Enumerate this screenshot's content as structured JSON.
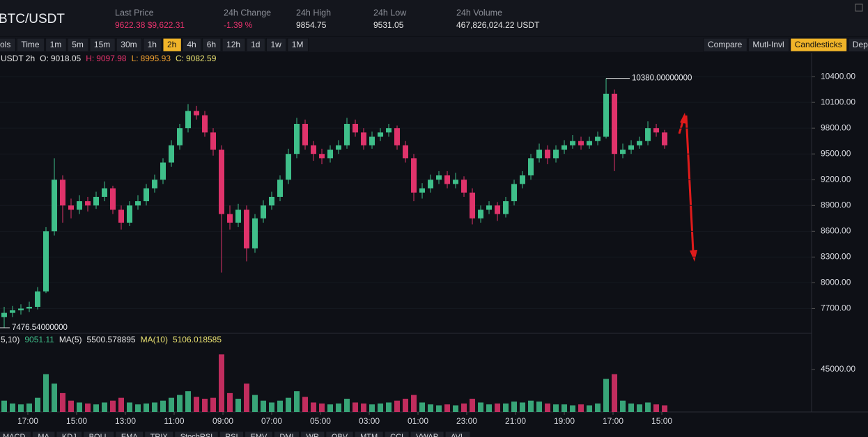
{
  "header": {
    "pair": "BTC/USDT",
    "stats": [
      {
        "label": "Last Price",
        "value": "9622.38 $9,622.31",
        "color": "#e8336d"
      },
      {
        "label": "24h Change",
        "value": "-1.39 %",
        "color": "#e8336d"
      },
      {
        "label": "24h High",
        "value": "9854.75",
        "color": "#e6e6e6"
      },
      {
        "label": "24h Low",
        "value": "9531.05",
        "color": "#e6e6e6"
      },
      {
        "label": "24h Volume",
        "value": "467,826,024.22 USDT",
        "color": "#e6e6e6"
      }
    ]
  },
  "toolbar": {
    "left": [
      {
        "label": "ols"
      },
      {
        "label": "Time"
      },
      {
        "label": "1m"
      },
      {
        "label": "5m"
      },
      {
        "label": "15m"
      },
      {
        "label": "30m"
      },
      {
        "label": "1h"
      },
      {
        "label": "2h",
        "active": true
      },
      {
        "label": "4h"
      },
      {
        "label": "6h"
      },
      {
        "label": "12h"
      },
      {
        "label": "1d"
      },
      {
        "label": "1w"
      },
      {
        "label": "1M"
      }
    ],
    "right": [
      {
        "label": "Compare"
      },
      {
        "label": "Mutl-Invl"
      },
      {
        "label": "Candlesticks",
        "active": true
      },
      {
        "label": "Dep"
      }
    ]
  },
  "ohlc_info": [
    {
      "text": "USDT 2h",
      "color": "#e6e6e6"
    },
    {
      "text": "O:",
      "color": "#e6e6e6"
    },
    {
      "text": "9018.05",
      "color": "#e6e6e6"
    },
    {
      "text": "H:",
      "color": "#e8336d"
    },
    {
      "text": "9097.98",
      "color": "#e8336d"
    },
    {
      "text": "L:",
      "color": "#f0a030"
    },
    {
      "text": "8995.93",
      "color": "#f0a030"
    },
    {
      "text": "C:",
      "color": "#e8e070"
    },
    {
      "text": "9082.59",
      "color": "#e8e070"
    }
  ],
  "volume_info": [
    {
      "text": "5,10)",
      "color": "#e6e6e6"
    },
    {
      "text": "9051.11",
      "color": "#3fbf8a"
    },
    {
      "text": "MA(5)",
      "color": "#e6e6e6"
    },
    {
      "text": "5500.578895",
      "color": "#e6e6e6"
    },
    {
      "text": "MA(10)",
      "color": "#e8e070"
    },
    {
      "text": "5106.018585",
      "color": "#e8e070"
    }
  ],
  "chart_data": {
    "type": "candlestick",
    "up_color": "#3fbf8a",
    "down_color": "#e0336b",
    "candles": [
      [
        7600,
        7720,
        7476.54,
        7650
      ],
      [
        7650,
        7730,
        7600,
        7680
      ],
      [
        7680,
        7750,
        7630,
        7700
      ],
      [
        7700,
        7780,
        7660,
        7720
      ],
      [
        7720,
        7950,
        7690,
        7900
      ],
      [
        7900,
        8650,
        7880,
        8600
      ],
      [
        8600,
        9450,
        8550,
        9200
      ],
      [
        9200,
        9250,
        8700,
        8900
      ],
      [
        8900,
        8980,
        8750,
        8850
      ],
      [
        8850,
        9020,
        8800,
        8950
      ],
      [
        8950,
        9000,
        8830,
        8900
      ],
      [
        8900,
        9060,
        8860,
        9000
      ],
      [
        9000,
        9180,
        8950,
        9100
      ],
      [
        9100,
        9130,
        8800,
        8850
      ],
      [
        8850,
        8900,
        8620,
        8700
      ],
      [
        8700,
        8950,
        8660,
        8900
      ],
      [
        8900,
        9020,
        8850,
        8950
      ],
      [
        8950,
        9150,
        8900,
        9100
      ],
      [
        9100,
        9260,
        9050,
        9200
      ],
      [
        9200,
        9450,
        9150,
        9400
      ],
      [
        9400,
        9660,
        9350,
        9600
      ],
      [
        9600,
        9850,
        9550,
        9800
      ],
      [
        9800,
        10080,
        9750,
        10000
      ],
      [
        10000,
        10060,
        9900,
        9950
      ],
      [
        9950,
        10000,
        9700,
        9750
      ],
      [
        9750,
        9800,
        9480,
        9550
      ],
      [
        9550,
        9600,
        8120,
        8800
      ],
      [
        8800,
        8900,
        8620,
        8700
      ],
      [
        8700,
        8920,
        8650,
        8850
      ],
      [
        8850,
        8900,
        8250,
        8400
      ],
      [
        8400,
        8800,
        8350,
        8750
      ],
      [
        8750,
        8960,
        8700,
        8900
      ],
      [
        8900,
        9060,
        8850,
        9000
      ],
      [
        9000,
        9250,
        8950,
        9200
      ],
      [
        9200,
        9560,
        9150,
        9500
      ],
      [
        9500,
        9920,
        9450,
        9850
      ],
      [
        9850,
        9900,
        9550,
        9600
      ],
      [
        9600,
        9650,
        9420,
        9500
      ],
      [
        9500,
        9560,
        9380,
        9450
      ],
      [
        9450,
        9600,
        9400,
        9550
      ],
      [
        9550,
        9660,
        9500,
        9600
      ],
      [
        9600,
        9920,
        9560,
        9850
      ],
      [
        9850,
        9900,
        9700,
        9750
      ],
      [
        9750,
        9800,
        9550,
        9600
      ],
      [
        9600,
        9760,
        9560,
        9700
      ],
      [
        9700,
        9800,
        9650,
        9750
      ],
      [
        9750,
        9850,
        9700,
        9800
      ],
      [
        9800,
        9830,
        9550,
        9600
      ],
      [
        9600,
        9650,
        9400,
        9450
      ],
      [
        9450,
        9500,
        8950,
        9050
      ],
      [
        9050,
        9160,
        8980,
        9100
      ],
      [
        9100,
        9260,
        9050,
        9200
      ],
      [
        9200,
        9300,
        9150,
        9250
      ],
      [
        9250,
        9300,
        9100,
        9150
      ],
      [
        9150,
        9280,
        9100,
        9200
      ],
      [
        9200,
        9240,
        9000,
        9050
      ],
      [
        9050,
        9100,
        8680,
        8750
      ],
      [
        8750,
        8900,
        8700,
        8850
      ],
      [
        8850,
        8950,
        8800,
        8900
      ],
      [
        8900,
        8940,
        8720,
        8800
      ],
      [
        8800,
        9000,
        8760,
        8950
      ],
      [
        8950,
        9200,
        8900,
        9150
      ],
      [
        9150,
        9300,
        9100,
        9250
      ],
      [
        9250,
        9500,
        9200,
        9450
      ],
      [
        9450,
        9620,
        9400,
        9550
      ],
      [
        9550,
        9600,
        9380,
        9450
      ],
      [
        9450,
        9600,
        9400,
        9550
      ],
      [
        9550,
        9660,
        9500,
        9600
      ],
      [
        9600,
        9720,
        9560,
        9650
      ],
      [
        9650,
        9700,
        9550,
        9600
      ],
      [
        9600,
        9700,
        9560,
        9650
      ],
      [
        9650,
        9760,
        9600,
        9700
      ],
      [
        9700,
        10380,
        9680,
        10200
      ],
      [
        10200,
        10250,
        9300,
        9500
      ],
      [
        9500,
        9620,
        9450,
        9550
      ],
      [
        9550,
        9660,
        9500,
        9600
      ],
      [
        9600,
        9700,
        9560,
        9650
      ],
      [
        9650,
        9880,
        9600,
        9800
      ],
      [
        9800,
        9850,
        9700,
        9750
      ],
      [
        9750,
        9780,
        9560,
        9600
      ]
    ],
    "volume": [
      12000,
      9000,
      8000,
      9000,
      15000,
      40000,
      30000,
      20000,
      12000,
      10000,
      9000,
      8000,
      10000,
      12000,
      15000,
      10000,
      8000,
      9000,
      10000,
      12000,
      15000,
      18000,
      22000,
      16000,
      14000,
      15000,
      61000,
      20000,
      14000,
      30000,
      18000,
      12000,
      10000,
      12000,
      15000,
      22000,
      16000,
      10000,
      9000,
      8000,
      9000,
      14000,
      10000,
      9000,
      8000,
      9000,
      10000,
      12000,
      14000,
      18000,
      10000,
      8000,
      7000,
      8000,
      7000,
      9000,
      14000,
      10000,
      8000,
      9000,
      9000,
      11000,
      10000,
      12000,
      11000,
      9000,
      8000,
      8000,
      7000,
      8000,
      7000,
      9000,
      35000,
      40000,
      12000,
      9000,
      8000,
      10000,
      8000,
      7000
    ],
    "xlim": [
      -0.5,
      96.58
    ],
    "xticks": [
      {
        "value": 2.83,
        "label": "17:00"
      },
      {
        "value": 8.67,
        "label": "15:00"
      },
      {
        "value": 14.5,
        "label": "13:00"
      },
      {
        "value": 20.33,
        "label": "11:00"
      },
      {
        "value": 26.17,
        "label": "09:00"
      },
      {
        "value": 32,
        "label": "07:00"
      },
      {
        "value": 37.83,
        "label": "05:00"
      },
      {
        "value": 43.67,
        "label": "03:00"
      },
      {
        "value": 49.5,
        "label": "01:00"
      },
      {
        "value": 55.33,
        "label": "23:00"
      },
      {
        "value": 61.17,
        "label": "21:00"
      },
      {
        "value": 67,
        "label": "19:00"
      },
      {
        "value": 72.83,
        "label": "17:00"
      },
      {
        "value": 78.67,
        "label": "15:00"
      }
    ],
    "ylim": [
      7420,
      10660
    ],
    "yticks": [
      {
        "value": 10400,
        "label": "10400.00"
      },
      {
        "value": 10100,
        "label": "10100.00"
      },
      {
        "value": 9800,
        "label": "9800.00"
      },
      {
        "value": 9500,
        "label": "9500.00"
      },
      {
        "value": 9200,
        "label": "9200.00"
      },
      {
        "value": 8900,
        "label": "8900.00"
      },
      {
        "value": 8600,
        "label": "8600.00"
      },
      {
        "value": 8300,
        "label": "8300.00"
      },
      {
        "value": 8000,
        "label": "8000.00"
      },
      {
        "value": 7700,
        "label": "7700.00"
      }
    ],
    "volume_ylim": [
      0,
      82600
    ],
    "volume_yticks": [
      {
        "value": 45000,
        "label": "45000.00"
      }
    ],
    "annotations": [
      {
        "text": "10380.00000000",
        "candle": 72,
        "field": 1
      },
      {
        "text": "7476.54000000",
        "candle": 0,
        "field": 2
      }
    ]
  },
  "indicator_tabs": [
    "MACD",
    "MA",
    "KDJ",
    "BOLL",
    "EMA",
    "TRIX",
    "StochRSI",
    "RSI",
    "EMV",
    "DMI",
    "WR",
    "OBV",
    "MTM",
    "CCI",
    "VWAP",
    "AVL"
  ]
}
